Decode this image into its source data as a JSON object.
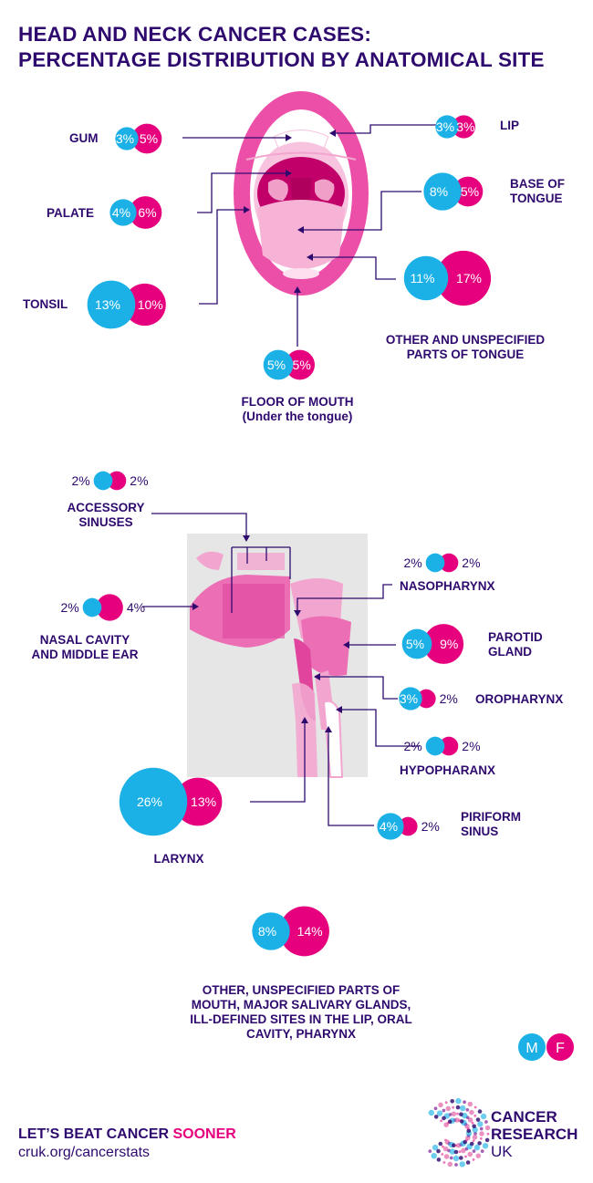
{
  "title": {
    "line1": "HEAD AND NECK CANCER CASES:",
    "line2": "PERCENTAGE DISTRIBUTION BY ANATOMICAL SITE"
  },
  "colors": {
    "male": "#1bb1e6",
    "female": "#e6007e",
    "navy": "#2e0a6e",
    "gray_panel": "#e6e6e6",
    "pink_light": "#f3a7d0",
    "pink_mid": "#ec6fb6",
    "pink_dark": "#c2006a"
  },
  "legend": {
    "male_label": "M",
    "female_label": "F"
  },
  "chart_data": {
    "type": "bubble",
    "series": [
      {
        "name": "M",
        "color": "#1bb1e6"
      },
      {
        "name": "F",
        "color": "#e6007e"
      }
    ],
    "categories": [
      {
        "site": "GUM",
        "male": 3,
        "female": 5,
        "male_text": "3%",
        "female_text": "5%"
      },
      {
        "site": "LIP",
        "male": 3,
        "female": 3,
        "male_text": "3%",
        "female_text": "3%"
      },
      {
        "site": "PALATE",
        "male": 4,
        "female": 6,
        "male_text": "4%",
        "female_text": "6%"
      },
      {
        "site": "BASE OF TONGUE",
        "male": 8,
        "female": 5,
        "male_text": "8%",
        "female_text": "5%"
      },
      {
        "site": "TONSIL",
        "male": 13,
        "female": 10,
        "male_text": "13%",
        "female_text": "10%"
      },
      {
        "site": "OTHER AND UNSPECIFIED PARTS OF TONGUE",
        "male": 11,
        "female": 17,
        "male_text": "11%",
        "female_text": "17%"
      },
      {
        "site": "FLOOR OF MOUTH (Under the tongue)",
        "male": 5,
        "female": 5,
        "male_text": "5%",
        "female_text": "5%"
      },
      {
        "site": "ACCESSORY SINUSES",
        "male": 2,
        "female": 2,
        "male_text": "2%",
        "female_text": "2%"
      },
      {
        "site": "NASAL CAVITY AND MIDDLE EAR",
        "male": 2,
        "female": 4,
        "male_text": "2%",
        "female_text": "4%"
      },
      {
        "site": "NASOPHARYNX",
        "male": 2,
        "female": 2,
        "male_text": "2%",
        "female_text": "2%"
      },
      {
        "site": "PAROTID GLAND",
        "male": 5,
        "female": 9,
        "male_text": "5%",
        "female_text": "9%"
      },
      {
        "site": "OROPHARYNX",
        "male": 3,
        "female": 2,
        "male_text": "3%",
        "female_text": "2%"
      },
      {
        "site": "HYPOPHARANX",
        "male": 2,
        "female": 2,
        "male_text": "2%",
        "female_text": "2%"
      },
      {
        "site": "LARYNX",
        "male": 26,
        "female": 13,
        "male_text": "26%",
        "female_text": "13%"
      },
      {
        "site": "PIRIFORM SINUS",
        "male": 4,
        "female": 2,
        "male_text": "4%",
        "female_text": "2%"
      },
      {
        "site": "OTHER, UNSPECIFIED PARTS OF MOUTH, MAJOR SALIVARY GLANDS, ILL-DEFINED SITES IN THE LIP, ORAL CAVITY, PHARYNX",
        "male": 8,
        "female": 14,
        "male_text": "8%",
        "female_text": "14%"
      }
    ]
  },
  "footer": {
    "tagline_start": "LET’S BEAT CANCER ",
    "tagline_highlight": "SOONER",
    "url": "cruk.org/cancerstats",
    "logo_line1": "CANCER",
    "logo_line2": "RESEARCH",
    "logo_line3": "UK"
  }
}
